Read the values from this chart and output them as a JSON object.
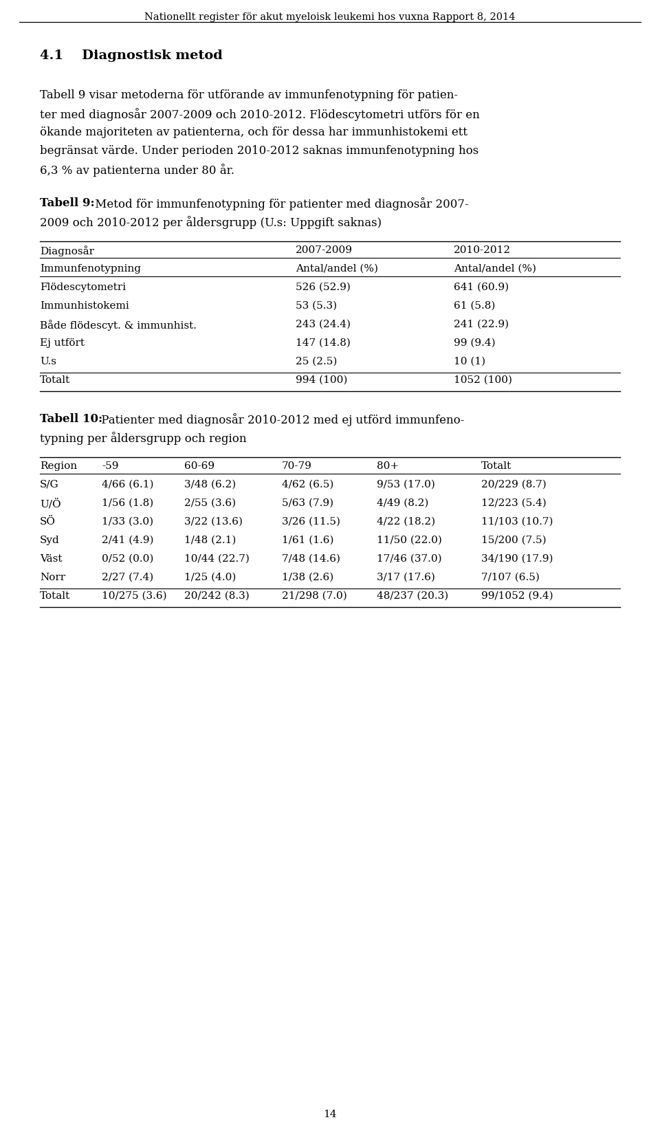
{
  "header": "Nationellt register för akut myeloisk leukemi hos vuxna Rapport 8, 2014",
  "section_title": "4.1    Diagnostisk metod",
  "body_lines": [
    "Tabell 9 visar metoderna för utförande av immunfenotypning för patien-",
    "ter med diagnosår 2007-2009 och 2010-2012. Flödescytometri utförs för en",
    "ökande majoriteten av patienterna, och för dessa har immunhistokemi ett",
    "begränsat värde. Under perioden 2010-2012 saknas immunfenotypning hos",
    "6,3 % av patienterna under 80 år."
  ],
  "tabell9_caption_bold": "Tabell 9:",
  "tabell9_caption_rest_lines": [
    " Metod för immunfenotypning för patienter med diagnosår 2007-",
    "2009 och 2010-2012 per åldersgrupp (U.s: Uppgift saknas)"
  ],
  "tabell9_headers": [
    "Diagnosår",
    "2007-2009",
    "2010-2012"
  ],
  "tabell9_subheaders": [
    "Immunfenotypning",
    "Antal/andel (%)",
    "Antal/andel (%)"
  ],
  "tabell9_rows": [
    [
      "Flödescytometri",
      "526 (52.9)",
      "641 (60.9)"
    ],
    [
      "Immunhistokemi",
      "53 (5.3)",
      "61 (5.8)"
    ],
    [
      "Både flödescyt. & immunhist.",
      "243 (24.4)",
      "241 (22.9)"
    ],
    [
      "Ej utfört",
      "147 (14.8)",
      "99 (9.4)"
    ],
    [
      "U.s",
      "25 (2.5)",
      "10 (1)"
    ]
  ],
  "tabell9_total": [
    "Totalt",
    "994 (100)",
    "1052 (100)"
  ],
  "tabell10_caption_bold": "Tabell 10:",
  "tabell10_caption_rest_lines": [
    " Patienter med diagnosår 2010-2012 med ej utförd immunfeno-",
    "typning per åldersgrupp och region"
  ],
  "tabell10_headers": [
    "Region",
    "-59",
    "60-69",
    "70-79",
    "80+",
    "Totalt"
  ],
  "tabell10_rows": [
    [
      "S/G",
      "4/66 (6.1)",
      "3/48 (6.2)",
      "4/62 (6.5)",
      "9/53 (17.0)",
      "20/229 (8.7)"
    ],
    [
      "U/Ö",
      "1/56 (1.8)",
      "2/55 (3.6)",
      "5/63 (7.9)",
      "4/49 (8.2)",
      "12/223 (5.4)"
    ],
    [
      "SÖ",
      "1/33 (3.0)",
      "3/22 (13.6)",
      "3/26 (11.5)",
      "4/22 (18.2)",
      "11/103 (10.7)"
    ],
    [
      "Syd",
      "2/41 (4.9)",
      "1/48 (2.1)",
      "1/61 (1.6)",
      "11/50 (22.0)",
      "15/200 (7.5)"
    ],
    [
      "Väst",
      "0/52 (0.0)",
      "10/44 (22.7)",
      "7/48 (14.6)",
      "17/46 (37.0)",
      "34/190 (17.9)"
    ],
    [
      "Norr",
      "2/27 (7.4)",
      "1/25 (4.0)",
      "1/38 (2.6)",
      "3/17 (17.6)",
      "7/107 (6.5)"
    ]
  ],
  "tabell10_total": [
    "Totalt",
    "10/275 (3.6)",
    "20/242 (8.3)",
    "21/298 (7.0)",
    "48/237 (20.3)",
    "99/1052 (9.4)"
  ],
  "page_number": "14",
  "bg_color": "#ffffff",
  "text_color": "#000000"
}
